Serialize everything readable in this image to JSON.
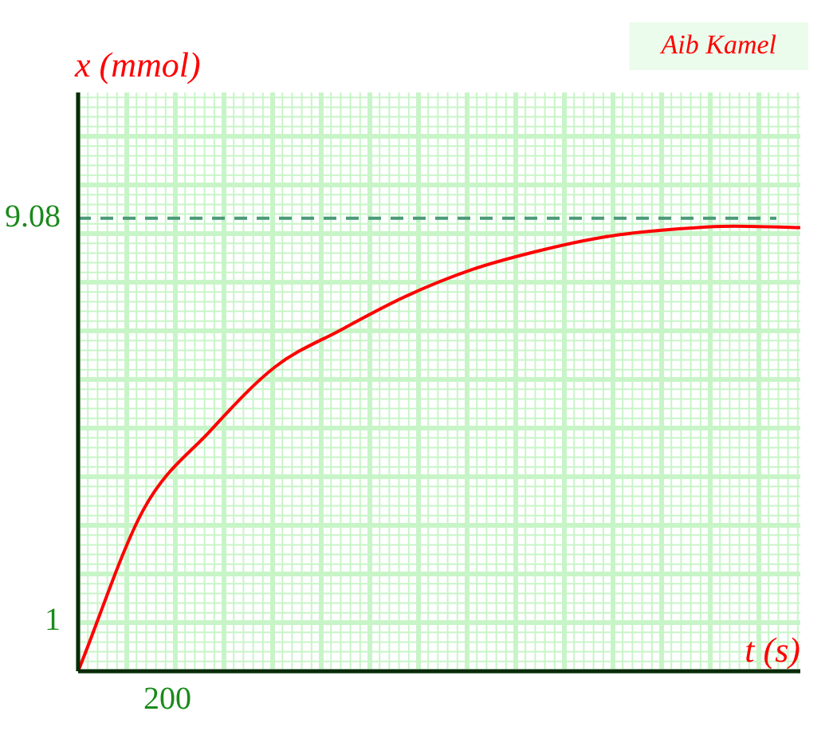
{
  "chart_data": {
    "type": "line",
    "xlabel": "t (s)",
    "ylabel": "x (mmol)",
    "categories": [
      null,
      null,
      null,
      null,
      null,
      null,
      null,
      null,
      null,
      null,
      null,
      null
    ],
    "series": [
      {
        "color": "#ff0000",
        "values": [
          0,
          3.25,
          4.8,
          6.1,
          6.84,
          7.52,
          8.05,
          8.42,
          8.7,
          8.85,
          8.92,
          8.89
        ]
      }
    ],
    "ylim": [
      0,
      11.6
    ],
    "yticks": [
      1,
      9.08
    ],
    "ref_lines": [
      {
        "axis": "y",
        "value": 9.08,
        "color": "#4a9a78",
        "line_style": "dashed"
      }
    ],
    "annotations": [
      "Aib Kamel",
      "200"
    ],
    "grid": true,
    "marker": "none",
    "line_style": "solid",
    "legend": false
  }
}
